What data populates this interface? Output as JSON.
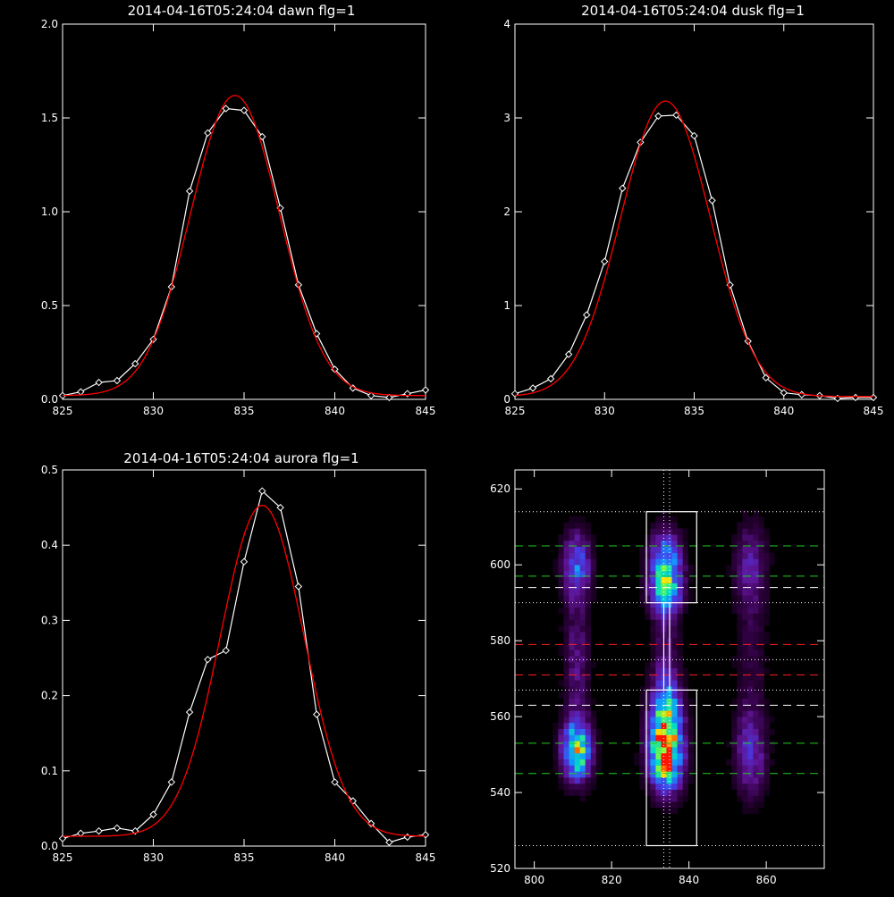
{
  "colors": {
    "background": "#000000",
    "axis": "#ffffff",
    "data_line": "#ffffff",
    "fit_line": "#ff0000",
    "green_lines": "#22cc22",
    "red_lines": "#ff2020",
    "white_lines": "#ffffff"
  },
  "chart_data": [
    {
      "type": "line",
      "title": "2014-04-16T05:24:04 dawn flg=1",
      "xlim": [
        825,
        845
      ],
      "ylim": [
        0,
        2.0
      ],
      "xticks": [
        "825",
        "830",
        "835",
        "840",
        "845"
      ],
      "yticks": [
        "0.0",
        "0.5",
        "1.0",
        "1.5",
        "2.0"
      ],
      "series": [
        {
          "role": "data",
          "markers": "diamond",
          "color": "#ffffff",
          "x": [
            825,
            826,
            827,
            828,
            829,
            830,
            831,
            832,
            833,
            834,
            835,
            836,
            837,
            838,
            839,
            840,
            841,
            842,
            843,
            844,
            845
          ],
          "y": [
            0.02,
            0.04,
            0.09,
            0.1,
            0.19,
            0.32,
            0.6,
            1.11,
            1.42,
            1.55,
            1.54,
            1.4,
            1.02,
            0.61,
            0.35,
            0.16,
            0.06,
            0.02,
            0.01,
            0.03,
            0.05
          ]
        },
        {
          "role": "fit",
          "color": "#ff0000",
          "gaussian": {
            "amp": 1.6,
            "center": 834.5,
            "sigma": 2.45,
            "offset": 0.02
          }
        }
      ]
    },
    {
      "type": "line",
      "title": "2014-04-16T05:24:04 dusk flg=1",
      "xlim": [
        825,
        845
      ],
      "ylim": [
        0,
        4
      ],
      "xticks": [
        "825",
        "830",
        "835",
        "840",
        "845"
      ],
      "yticks": [
        "0",
        "1",
        "2",
        "3",
        "4"
      ],
      "series": [
        {
          "role": "data",
          "markers": "diamond",
          "color": "#ffffff",
          "x": [
            825,
            826,
            827,
            828,
            829,
            830,
            831,
            832,
            833,
            834,
            835,
            836,
            837,
            838,
            839,
            840,
            841,
            842,
            843,
            844,
            845
          ],
          "y": [
            0.06,
            0.12,
            0.22,
            0.48,
            0.9,
            1.47,
            2.25,
            2.74,
            3.02,
            3.03,
            2.81,
            2.12,
            1.22,
            0.62,
            0.23,
            0.07,
            0.05,
            0.04,
            0.01,
            0.02,
            0.02
          ]
        },
        {
          "role": "fit",
          "color": "#ff0000",
          "gaussian": {
            "amp": 3.15,
            "center": 833.4,
            "sigma": 2.5,
            "offset": 0.03
          }
        }
      ]
    },
    {
      "type": "line",
      "title": "2014-04-16T05:24:04 aurora flg=1",
      "xlim": [
        825,
        845
      ],
      "ylim": [
        0,
        0.5
      ],
      "xticks": [
        "825",
        "830",
        "835",
        "840",
        "845"
      ],
      "yticks": [
        "0.0",
        "0.1",
        "0.2",
        "0.3",
        "0.4",
        "0.5"
      ],
      "series": [
        {
          "role": "data",
          "markers": "diamond",
          "color": "#ffffff",
          "x": [
            825,
            826,
            827,
            828,
            829,
            830,
            831,
            832,
            833,
            834,
            835,
            836,
            837,
            838,
            839,
            840,
            841,
            842,
            843,
            844,
            845
          ],
          "y": [
            0.01,
            0.017,
            0.02,
            0.024,
            0.02,
            0.042,
            0.085,
            0.178,
            0.248,
            0.26,
            0.378,
            0.472,
            0.45,
            0.345,
            0.175,
            0.085,
            0.06,
            0.03,
            0.005,
            0.012,
            0.015
          ]
        },
        {
          "role": "fit",
          "color": "#ff0000",
          "gaussian": {
            "amp": 0.44,
            "center": 836.0,
            "sigma": 2.3,
            "offset": 0.013
          }
        }
      ]
    },
    {
      "type": "heatmap",
      "title": "",
      "xlim": [
        795,
        875
      ],
      "ylim": [
        520,
        625
      ],
      "xticks": [
        "800",
        "820",
        "840",
        "860"
      ],
      "yticks": [
        "520",
        "540",
        "560",
        "580",
        "600",
        "620"
      ],
      "blobs": [
        {
          "x": 811,
          "y": 551,
          "sx": 2.6,
          "sy": 5.5,
          "peak": 0.8
        },
        {
          "x": 811,
          "y": 600,
          "sx": 2.6,
          "sy": 6.0,
          "peak": 0.45
        },
        {
          "x": 811,
          "y": 575,
          "sx": 2.4,
          "sy": 12,
          "peak": 0.22
        },
        {
          "x": 834,
          "y": 550,
          "sx": 3.0,
          "sy": 6.5,
          "peak": 1.0
        },
        {
          "x": 834,
          "y": 562,
          "sx": 2.8,
          "sy": 6.0,
          "peak": 0.55
        },
        {
          "x": 834,
          "y": 600,
          "sx": 3.0,
          "sy": 6.0,
          "peak": 0.6
        },
        {
          "x": 834,
          "y": 592,
          "sx": 2.8,
          "sy": 4.0,
          "peak": 0.4
        },
        {
          "x": 834,
          "y": 578,
          "sx": 2.5,
          "sy": 10,
          "peak": 0.18
        },
        {
          "x": 856,
          "y": 550,
          "sx": 3.0,
          "sy": 8.0,
          "peak": 0.3
        },
        {
          "x": 856,
          "y": 600,
          "sx": 3.0,
          "sy": 8.0,
          "peak": 0.25
        },
        {
          "x": 856,
          "y": 575,
          "sx": 3.0,
          "sy": 14,
          "peak": 0.12
        }
      ],
      "boxes": [
        {
          "x0": 829,
          "x1": 842,
          "y0": 526,
          "y1": 567,
          "color": "#ffffff"
        },
        {
          "x0": 829,
          "x1": 842,
          "y0": 590,
          "y1": 614,
          "color": "#ffffff"
        },
        {
          "x0": 833.5,
          "x1": 835,
          "y0": 567,
          "y1": 590,
          "color": "#ffffff"
        }
      ],
      "hlines": [
        {
          "y": 614,
          "style": "dotted",
          "color": "#ffffff"
        },
        {
          "y": 605,
          "style": "dashed",
          "color": "#22cc22"
        },
        {
          "y": 597,
          "style": "dashed",
          "color": "#22cc22"
        },
        {
          "y": 594,
          "style": "dashed",
          "color": "#ffffff"
        },
        {
          "y": 590,
          "style": "dotted",
          "color": "#ffffff"
        },
        {
          "y": 579,
          "style": "dashed",
          "color": "#ff2020"
        },
        {
          "y": 575,
          "style": "dotted",
          "color": "#ffffff"
        },
        {
          "y": 571,
          "style": "dashed",
          "color": "#ff2020"
        },
        {
          "y": 567,
          "style": "dotted",
          "color": "#ffffff"
        },
        {
          "y": 563,
          "style": "dashed",
          "color": "#ffffff"
        },
        {
          "y": 553,
          "style": "dashed",
          "color": "#22cc22"
        },
        {
          "y": 545,
          "style": "dashed",
          "color": "#22cc22"
        },
        {
          "y": 526,
          "style": "dotted",
          "color": "#ffffff"
        }
      ],
      "vlines": [
        {
          "x": 833.5,
          "style": "dotted",
          "color": "#ffffff"
        },
        {
          "x": 835,
          "style": "dotted",
          "color": "#ffffff"
        }
      ]
    }
  ]
}
